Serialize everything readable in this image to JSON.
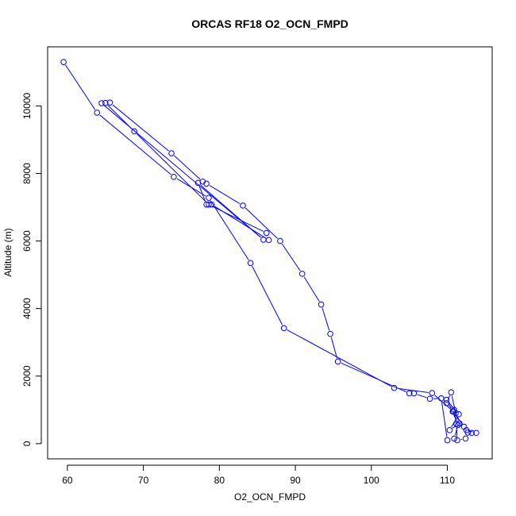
{
  "chart_data": {
    "type": "line",
    "title": "ORCAS RF18 O2_OCN_FMPD",
    "xlabel": "O2_OCN_FMPD",
    "ylabel": "Altitude (m)",
    "xlim": [
      57.4,
      115.9
    ],
    "ylim": [
      -450,
      11750
    ],
    "x_ticks": [
      60,
      70,
      80,
      90,
      100,
      110
    ],
    "y_ticks": [
      0,
      2000,
      4000,
      6000,
      8000,
      10000
    ],
    "grid": false,
    "legend": "none",
    "colors": {
      "series": "#0000ff",
      "axis": "#000000"
    },
    "series": [
      {
        "marker": "open-circle",
        "points": [
          [
            59.5,
            11300
          ],
          [
            63.9,
            9800
          ],
          [
            74.0,
            7900
          ],
          [
            78.6,
            7280
          ],
          [
            84.1,
            5350
          ],
          [
            88.5,
            3420
          ],
          [
            103.0,
            1650
          ],
          [
            108.0,
            1500
          ],
          [
            110.8,
            950
          ],
          [
            112.2,
            500
          ],
          [
            112.5,
            400
          ],
          [
            113.8,
            320
          ],
          [
            113.2,
            320
          ],
          [
            112.7,
            330
          ],
          [
            112.4,
            150
          ],
          [
            111.3,
            100
          ],
          [
            111.2,
            580
          ],
          [
            110.9,
            1000
          ],
          [
            109.9,
            1200
          ],
          [
            110.5,
            1520
          ],
          [
            111.1,
            900
          ],
          [
            111.6,
            600
          ],
          [
            110.3,
            400
          ],
          [
            111.5,
            870
          ],
          [
            109.9,
            1300
          ],
          [
            110.7,
            950
          ],
          [
            111.4,
            550
          ],
          [
            110.9,
            150
          ],
          [
            110.0,
            100
          ],
          [
            109.2,
            1340
          ],
          [
            107.7,
            1330
          ],
          [
            105.6,
            1490
          ],
          [
            105.0,
            1490
          ],
          [
            95.6,
            2430
          ],
          [
            94.6,
            3250
          ],
          [
            93.4,
            4120
          ],
          [
            90.9,
            5030
          ],
          [
            88.0,
            6000
          ],
          [
            83.1,
            7050
          ],
          [
            78.3,
            7700
          ],
          [
            77.8,
            7760
          ],
          [
            73.7,
            8600
          ],
          [
            65.6,
            10100
          ],
          [
            65.0,
            10090
          ],
          [
            68.8,
            9250
          ],
          [
            78.6,
            7080
          ],
          [
            86.2,
            6240
          ],
          [
            86.5,
            6030
          ],
          [
            79.0,
            7080
          ],
          [
            78.3,
            7080
          ],
          [
            77.2,
            7720
          ],
          [
            85.8,
            6040
          ],
          [
            64.5,
            10080
          ]
        ]
      }
    ]
  }
}
